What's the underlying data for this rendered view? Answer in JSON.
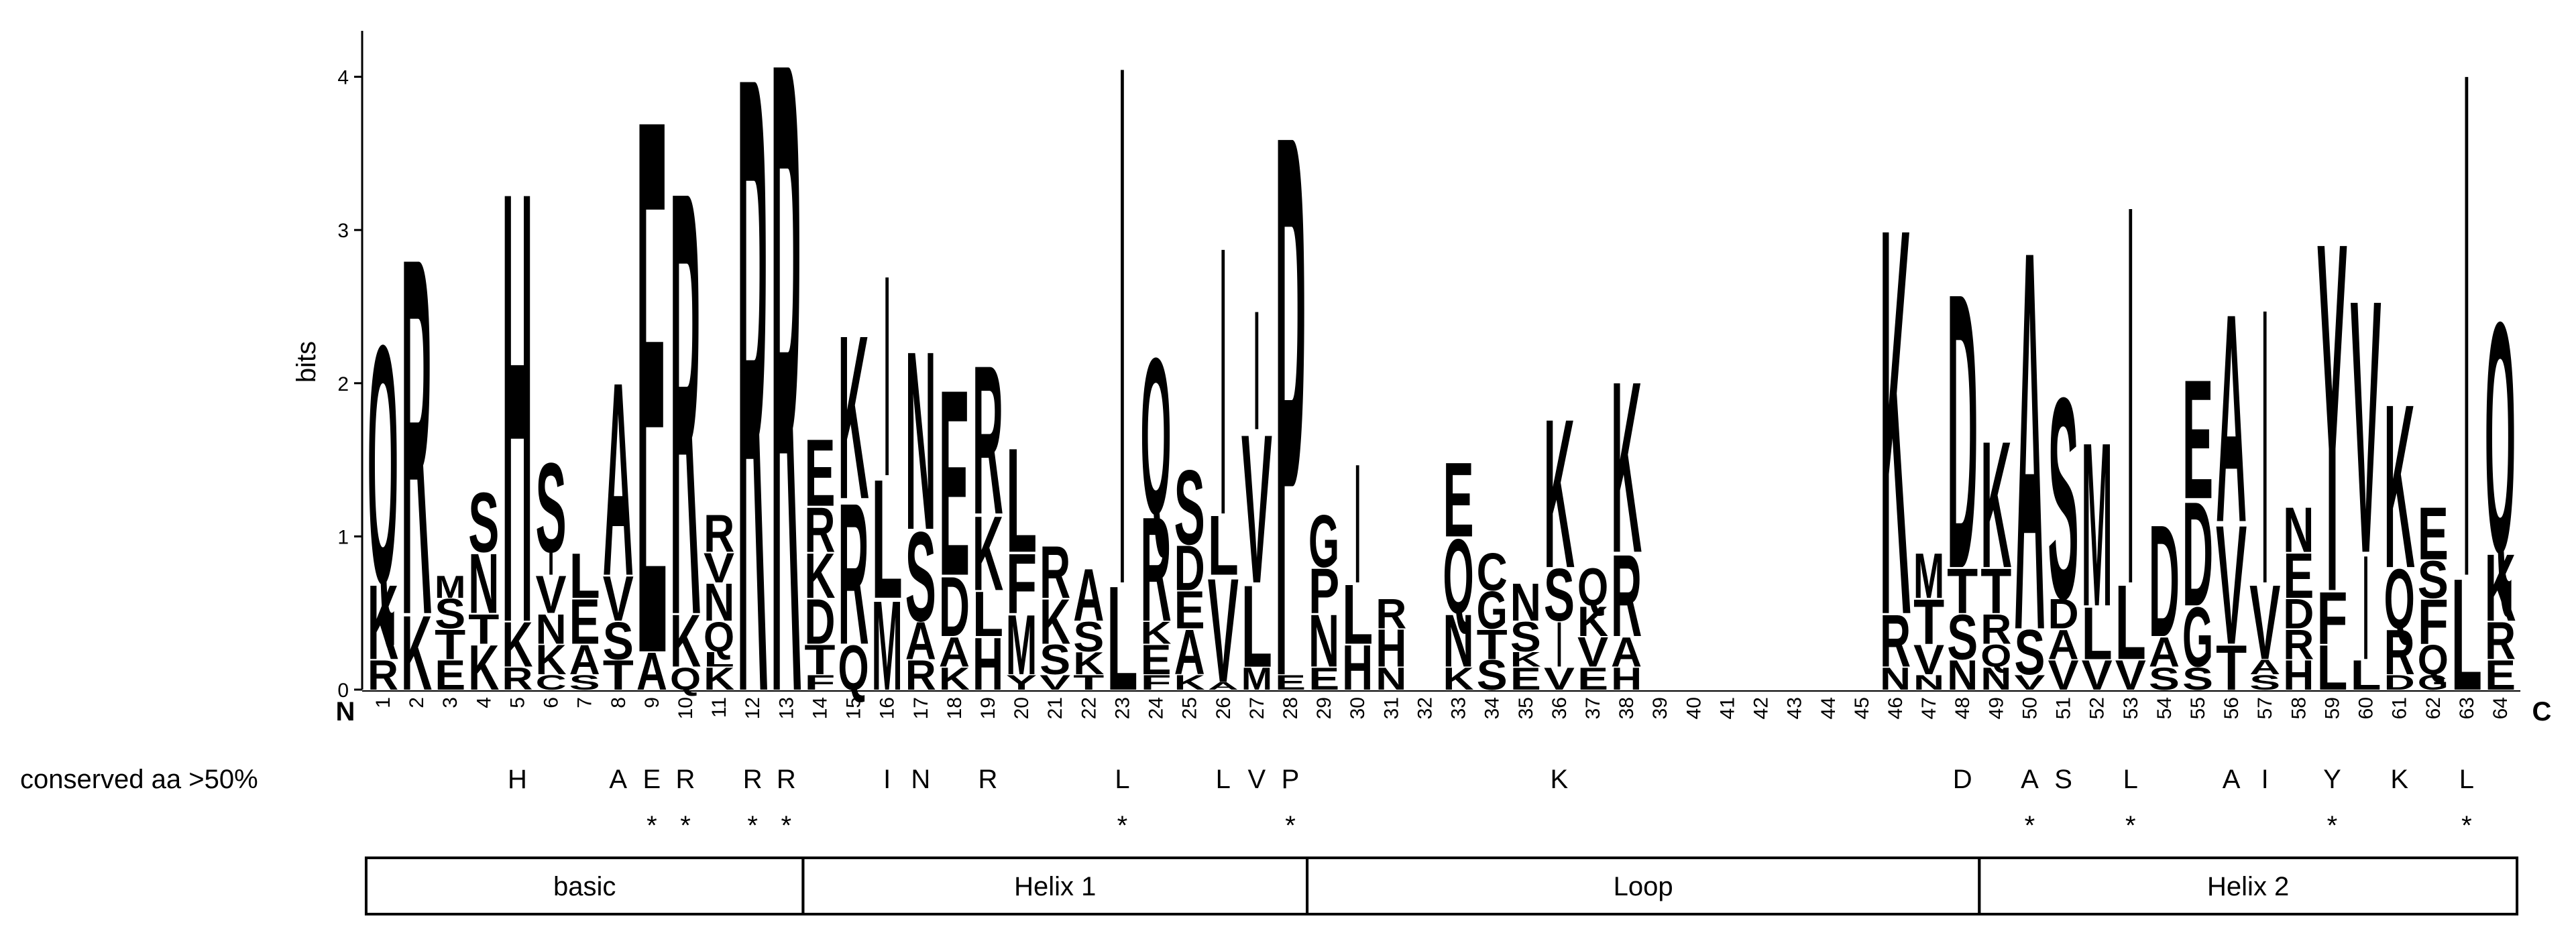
{
  "chart_data": {
    "type": "logo",
    "ylabel": "bits",
    "ylim": [
      0,
      4.3
    ],
    "yticks": [
      0,
      1,
      2,
      3,
      4
    ],
    "n_label": "N",
    "c_label": "C",
    "categories": [
      "1",
      "2",
      "3",
      "4",
      "5",
      "6",
      "7",
      "8",
      "9",
      "10",
      "11",
      "12",
      "13",
      "14",
      "15",
      "16",
      "17",
      "18",
      "19",
      "20",
      "21",
      "22",
      "23",
      "24",
      "25",
      "26",
      "27",
      "28",
      "29",
      "30",
      "31",
      "32",
      "33",
      "34",
      "35",
      "36",
      "37",
      "38",
      "39",
      "40",
      "41",
      "42",
      "43",
      "44",
      "45",
      "46",
      "47",
      "48",
      "49",
      "50",
      "51",
      "52",
      "53",
      "54",
      "55",
      "56",
      "57",
      "58",
      "59",
      "60",
      "61",
      "62",
      "63",
      "64"
    ],
    "colors": {
      "K": "#1f2bd0",
      "R": "#1f2bd0",
      "H": "#1f2bd0",
      "D": "#d0171d",
      "E": "#d0171d",
      "N": "#c21ec4",
      "Q": "#c21ec4",
      "S": "#2bc42b",
      "T": "#2bc42b",
      "G": "#2bc42b",
      "Y": "#2bc42b",
      "C": "#2bc42b",
      "A": "#000000",
      "V": "#000000",
      "L": "#000000",
      "I": "#000000",
      "M": "#000000",
      "F": "#000000",
      "P": "#000000",
      "W": "#000000"
    },
    "stacks": [
      {
        "letters": [
          "R",
          "K",
          "Q"
        ],
        "heights": [
          0.2,
          0.5,
          1.6
        ]
      },
      {
        "letters": [
          "K",
          "R"
        ],
        "heights": [
          0.5,
          2.4
        ]
      },
      {
        "letters": [
          "E",
          "T",
          "S",
          "M"
        ],
        "heights": [
          0.2,
          0.2,
          0.2,
          0.15
        ]
      },
      {
        "letters": [
          "K",
          "T",
          "N",
          "S"
        ],
        "heights": [
          0.3,
          0.2,
          0.4,
          0.4
        ]
      },
      {
        "letters": [
          "R",
          "K",
          "H"
        ],
        "heights": [
          0.15,
          0.3,
          2.9
        ]
      },
      {
        "letters": [
          "C",
          "K",
          "N",
          "V",
          "I",
          "S"
        ],
        "heights": [
          0.1,
          0.2,
          0.2,
          0.25,
          0.15,
          0.6
        ]
      },
      {
        "letters": [
          "S",
          "A",
          "E",
          "L"
        ],
        "heights": [
          0.1,
          0.2,
          0.3,
          0.3
        ]
      },
      {
        "letters": [
          "T",
          "S",
          "V",
          "A"
        ],
        "heights": [
          0.2,
          0.25,
          0.3,
          1.3
        ]
      },
      {
        "letters": [
          "A",
          "E"
        ],
        "heights": [
          0.25,
          3.6
        ]
      },
      {
        "letters": [
          "Q",
          "K",
          "R"
        ],
        "heights": [
          0.15,
          0.35,
          2.85
        ]
      },
      {
        "letters": [
          "K",
          "L",
          "Q",
          "N",
          "V",
          "R"
        ],
        "heights": [
          0.15,
          0.1,
          0.2,
          0.25,
          0.2,
          0.25
        ]
      },
      {
        "letters": [
          "R"
        ],
        "heights": [
          4.15
        ]
      },
      {
        "letters": [
          "R"
        ],
        "heights": [
          4.25
        ]
      },
      {
        "letters": [
          "F",
          "T",
          "D",
          "K",
          "R",
          "E"
        ],
        "heights": [
          0.1,
          0.2,
          0.3,
          0.3,
          0.3,
          0.45
        ]
      },
      {
        "letters": [
          "Q",
          "R",
          "K"
        ],
        "heights": [
          0.3,
          0.95,
          1.1
        ]
      },
      {
        "letters": [
          "M",
          "L",
          "I"
        ],
        "heights": [
          0.6,
          0.8,
          1.35
        ]
      },
      {
        "letters": [
          "R",
          "A",
          "S",
          "N"
        ],
        "heights": [
          0.2,
          0.25,
          0.6,
          1.2
        ]
      },
      {
        "letters": [
          "K",
          "A",
          "D",
          "E"
        ],
        "heights": [
          0.15,
          0.2,
          0.4,
          1.25
        ]
      },
      {
        "letters": [
          "H",
          "L",
          "K",
          "R"
        ],
        "heights": [
          0.35,
          0.3,
          0.5,
          1.0
        ]
      },
      {
        "letters": [
          "Y",
          "M",
          "F",
          "L"
        ],
        "heights": [
          0.1,
          0.4,
          0.4,
          0.7
        ]
      },
      {
        "letters": [
          "V",
          "S",
          "K",
          "R"
        ],
        "heights": [
          0.1,
          0.2,
          0.3,
          0.35
        ]
      },
      {
        "letters": [
          "T",
          "K",
          "S",
          "A"
        ],
        "heights": [
          0.1,
          0.15,
          0.2,
          0.35
        ]
      },
      {
        "letters": [
          "L",
          "I"
        ],
        "heights": [
          0.7,
          3.5
        ]
      },
      {
        "letters": [
          "F",
          "E",
          "K",
          "R",
          "Q"
        ],
        "heights": [
          0.1,
          0.2,
          0.15,
          0.7,
          1.05
        ]
      },
      {
        "letters": [
          "K",
          "A",
          "E",
          "D",
          "S"
        ],
        "heights": [
          0.1,
          0.3,
          0.25,
          0.3,
          0.5
        ]
      },
      {
        "letters": [
          "A",
          "V",
          "L",
          "I"
        ],
        "heights": [
          0.05,
          0.7,
          0.4,
          1.8
        ]
      },
      {
        "letters": [
          "M",
          "L",
          "V",
          "I"
        ],
        "heights": [
          0.15,
          0.55,
          1.0,
          0.8
        ]
      },
      {
        "letters": [
          "E",
          "P"
        ],
        "heights": [
          0.1,
          3.65
        ]
      },
      {
        "letters": [
          "E",
          "N",
          "P",
          "G"
        ],
        "heights": [
          0.15,
          0.35,
          0.3,
          0.35
        ]
      },
      {
        "letters": [
          "H",
          "L",
          "I"
        ],
        "heights": [
          0.3,
          0.4,
          0.8
        ]
      },
      {
        "letters": [
          "N",
          "H",
          "R"
        ],
        "heights": [
          0.15,
          0.25,
          0.2
        ]
      },
      {
        "letters": [],
        "heights": []
      },
      {
        "letters": [
          "K",
          "N",
          "Q",
          "E"
        ],
        "heights": [
          0.15,
          0.35,
          0.5,
          0.5
        ]
      },
      {
        "letters": [
          "S",
          "T",
          "G",
          "C"
        ],
        "heights": [
          0.2,
          0.2,
          0.25,
          0.25
        ]
      },
      {
        "letters": [
          "E",
          "K",
          "S",
          "N"
        ],
        "heights": [
          0.15,
          0.1,
          0.2,
          0.25
        ]
      },
      {
        "letters": [
          "V",
          "I",
          "S",
          "K"
        ],
        "heights": [
          0.15,
          0.3,
          0.35,
          1.0
        ]
      },
      {
        "letters": [
          "E",
          "V",
          "K",
          "Q"
        ],
        "heights": [
          0.15,
          0.2,
          0.2,
          0.25
        ]
      },
      {
        "letters": [
          "H",
          "A",
          "R",
          "K"
        ],
        "heights": [
          0.15,
          0.2,
          0.55,
          1.15
        ]
      },
      {
        "letters": [],
        "heights": []
      },
      {
        "letters": [],
        "heights": []
      },
      {
        "letters": [],
        "heights": []
      },
      {
        "letters": [],
        "heights": []
      },
      {
        "letters": [],
        "heights": []
      },
      {
        "letters": [],
        "heights": []
      },
      {
        "letters": [],
        "heights": []
      },
      {
        "letters": [
          "N",
          "R",
          "K"
        ],
        "heights": [
          0.15,
          0.35,
          2.6
        ]
      },
      {
        "letters": [
          "N",
          "V",
          "T",
          "M"
        ],
        "heights": [
          0.1,
          0.2,
          0.3,
          0.3
        ]
      },
      {
        "letters": [
          "N",
          "S",
          "T",
          "D"
        ],
        "heights": [
          0.2,
          0.3,
          0.3,
          1.85
        ]
      },
      {
        "letters": [
          "N",
          "Q",
          "R",
          "T",
          "K"
        ],
        "heights": [
          0.15,
          0.15,
          0.2,
          0.3,
          0.85
        ]
      },
      {
        "letters": [
          "V",
          "S",
          "A"
        ],
        "heights": [
          0.1,
          0.3,
          2.55
        ]
      },
      {
        "letters": [
          "V",
          "A",
          "D",
          "S"
        ],
        "heights": [
          0.2,
          0.2,
          0.2,
          1.35
        ]
      },
      {
        "letters": [
          "V",
          "L",
          "M"
        ],
        "heights": [
          0.2,
          0.35,
          1.1
        ]
      },
      {
        "letters": [
          "V",
          "L",
          "I"
        ],
        "heights": [
          0.2,
          0.5,
          2.55
        ]
      },
      {
        "letters": [
          "S",
          "A",
          "D"
        ],
        "heights": [
          0.15,
          0.2,
          0.75
        ]
      },
      {
        "letters": [
          "S",
          "G",
          "D",
          "E"
        ],
        "heights": [
          0.15,
          0.4,
          0.7,
          0.8
        ]
      },
      {
        "letters": [
          "T",
          "V",
          "A"
        ],
        "heights": [
          0.3,
          0.8,
          1.4
        ]
      },
      {
        "letters": [
          "S",
          "A",
          "V",
          "I"
        ],
        "heights": [
          0.1,
          0.1,
          0.5,
          1.85
        ]
      },
      {
        "letters": [
          "H",
          "R",
          "D",
          "E",
          "N"
        ],
        "heights": [
          0.2,
          0.2,
          0.2,
          0.3,
          0.3
        ]
      },
      {
        "letters": [
          "L",
          "F",
          "Y"
        ],
        "heights": [
          0.3,
          0.35,
          2.35
        ]
      },
      {
        "letters": [
          "L",
          "I",
          "V"
        ],
        "heights": [
          0.2,
          0.7,
          1.7
        ]
      },
      {
        "letters": [
          "D",
          "R",
          "Q",
          "K"
        ],
        "heights": [
          0.1,
          0.3,
          0.4,
          1.1
        ]
      },
      {
        "letters": [
          "G",
          "Q",
          "F",
          "S",
          "E"
        ],
        "heights": [
          0.1,
          0.2,
          0.3,
          0.25,
          0.35
        ]
      },
      {
        "letters": [
          "L",
          "I"
        ],
        "heights": [
          0.75,
          3.4
        ]
      },
      {
        "letters": [
          "E",
          "R",
          "K",
          "Q"
        ],
        "heights": [
          0.2,
          0.25,
          0.45,
          1.55
        ]
      }
    ],
    "conserved_label": "conserved aa >50%",
    "conserved": [
      {
        "position": 5,
        "residue": "H"
      },
      {
        "position": 8,
        "residue": "A"
      },
      {
        "position": 9,
        "residue": "E"
      },
      {
        "position": 10,
        "residue": "R"
      },
      {
        "position": 12,
        "residue": "R"
      },
      {
        "position": 13,
        "residue": "R"
      },
      {
        "position": 16,
        "residue": "I"
      },
      {
        "position": 17,
        "residue": "N"
      },
      {
        "position": 19,
        "residue": "R"
      },
      {
        "position": 23,
        "residue": "L"
      },
      {
        "position": 26,
        "residue": "L"
      },
      {
        "position": 27,
        "residue": "V"
      },
      {
        "position": 28,
        "residue": "P"
      },
      {
        "position": 36,
        "residue": "K"
      },
      {
        "position": 48,
        "residue": "D"
      },
      {
        "position": 50,
        "residue": "A"
      },
      {
        "position": 51,
        "residue": "S"
      },
      {
        "position": 53,
        "residue": "L"
      },
      {
        "position": 56,
        "residue": "A"
      },
      {
        "position": 57,
        "residue": "I"
      },
      {
        "position": 59,
        "residue": "Y"
      },
      {
        "position": 61,
        "residue": "K"
      },
      {
        "position": 63,
        "residue": "L"
      }
    ],
    "stars": {
      "symbol": "*",
      "positions": [
        9,
        10,
        12,
        13,
        23,
        28,
        50,
        53,
        59,
        63
      ]
    },
    "domains": [
      {
        "name": "basic",
        "from": 1,
        "to": 13
      },
      {
        "name": "Helix 1",
        "from": 14,
        "to": 28
      },
      {
        "name": "Loop",
        "from": 29,
        "to": 48
      },
      {
        "name": "Helix 2",
        "from": 49,
        "to": 64
      }
    ]
  }
}
